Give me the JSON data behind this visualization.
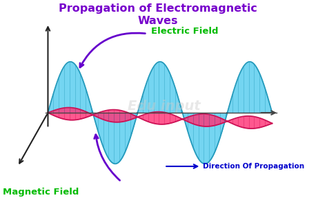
{
  "title": "Propagation of Electromagnetic\nWaves",
  "title_color": "#7700cc",
  "title_fontsize": 11.5,
  "electric_field_label": "Electric Field",
  "electric_field_color": "#00bb00",
  "magnetic_field_label": "Magnetic Field",
  "magnetic_field_color": "#00bb00",
  "propagation_label": "→Direction Of Propagation",
  "propagation_color": "#0000cc",
  "electric_wave_color": "#55ccee",
  "electric_wave_edge": "#2299bb",
  "magnetic_wave_color": "#ff3377",
  "magnetic_wave_edge": "#cc1155",
  "arrow_color": "#6600cc",
  "axis_color": "#222222",
  "background_color": "#ffffff",
  "watermark": "Edu input",
  "watermark_color": "#cccccc",
  "n_points": 500,
  "n_cycles": 2.5,
  "e_amplitude": 1.0,
  "m_amplitude": 0.38,
  "m_shear": 0.32,
  "wave_alpha": 0.82,
  "hatch_alpha": 0.45
}
